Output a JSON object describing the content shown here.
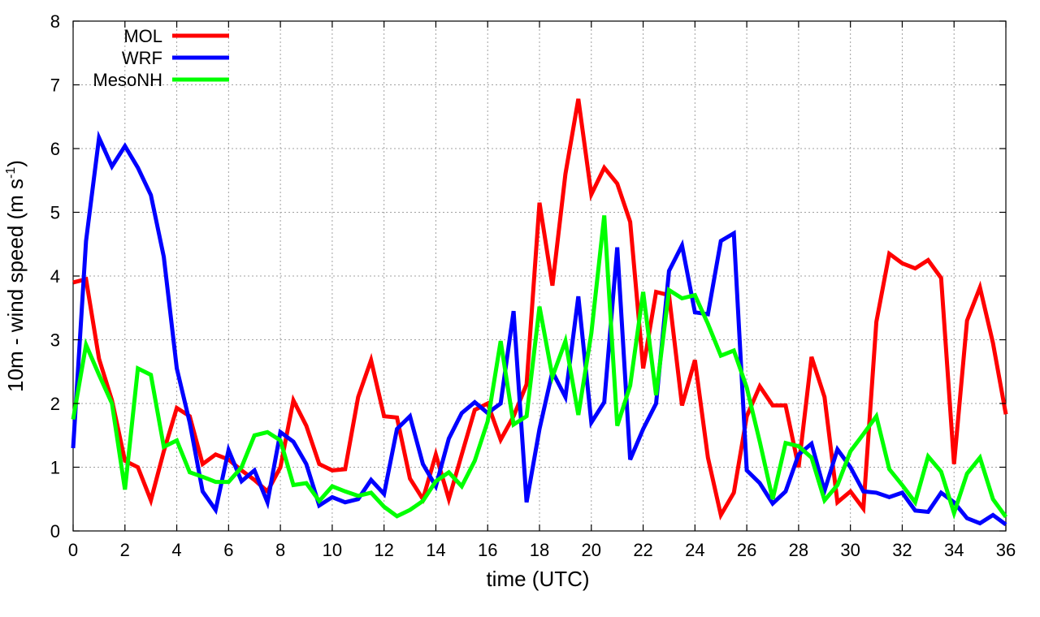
{
  "chart_data": {
    "type": "line",
    "title": "",
    "xlabel": "time (UTC)",
    "ylabel_main": "10m - wind speed  (m s",
    "ylabel_sup": "-1",
    "ylabel_close": ")",
    "xlim": [
      0,
      36
    ],
    "ylim": [
      0,
      8
    ],
    "xticks": [
      0,
      2,
      4,
      6,
      8,
      10,
      12,
      14,
      16,
      18,
      20,
      22,
      24,
      26,
      28,
      30,
      32,
      34,
      36
    ],
    "yticks": [
      0,
      1,
      2,
      3,
      4,
      5,
      6,
      7,
      8
    ],
    "grid": true,
    "legend_position": "top-left",
    "x": [
      0,
      0.5,
      1,
      1.5,
      2,
      2.5,
      3,
      3.5,
      4,
      4.5,
      5,
      5.5,
      6,
      6.5,
      7,
      7.5,
      8,
      8.5,
      9,
      9.5,
      10,
      10.5,
      11,
      11.5,
      12,
      12.5,
      13,
      13.5,
      14,
      14.5,
      15,
      15.5,
      16,
      16.5,
      17,
      17.5,
      18,
      18.5,
      19,
      19.5,
      20,
      20.5,
      21,
      21.5,
      22,
      22.5,
      23,
      23.5,
      24,
      24.5,
      25,
      25.5,
      26,
      26.5,
      27,
      27.5,
      28,
      28.5,
      29,
      29.5,
      30,
      30.5,
      31,
      31.5,
      32,
      32.5,
      33,
      33.5,
      34,
      34.5,
      35,
      35.5,
      36
    ],
    "series": [
      {
        "name": "MOL",
        "color": "#ff0000",
        "values": [
          3.9,
          3.95,
          2.7,
          2.05,
          1.1,
          1.0,
          0.48,
          1.25,
          1.93,
          1.8,
          1.05,
          1.2,
          1.12,
          0.95,
          0.8,
          0.62,
          1.0,
          2.05,
          1.65,
          1.05,
          0.95,
          0.97,
          2.1,
          2.68,
          1.8,
          1.78,
          0.82,
          0.5,
          1.2,
          0.5,
          1.2,
          1.9,
          2.0,
          1.43,
          1.8,
          2.3,
          5.15,
          3.85,
          5.6,
          6.78,
          5.28,
          5.7,
          5.45,
          4.85,
          2.55,
          3.75,
          3.7,
          1.97,
          2.68,
          1.15,
          0.25,
          0.6,
          1.8,
          2.27,
          1.97,
          1.97,
          1.0,
          2.73,
          2.1,
          0.45,
          0.62,
          0.35,
          3.28,
          4.35,
          4.2,
          4.12,
          4.25,
          3.97,
          1.05,
          3.3,
          3.82,
          2.95,
          1.83
        ]
      },
      {
        "name": "WRF",
        "color": "#0000ff",
        "values": [
          1.3,
          4.55,
          6.17,
          5.72,
          6.04,
          5.7,
          5.27,
          4.3,
          2.55,
          1.7,
          0.62,
          0.33,
          1.27,
          0.78,
          0.95,
          0.45,
          1.55,
          1.4,
          1.05,
          0.4,
          0.53,
          0.45,
          0.5,
          0.8,
          0.58,
          1.6,
          1.8,
          1.05,
          0.7,
          1.45,
          1.85,
          2.02,
          1.85,
          2.0,
          3.45,
          0.45,
          1.6,
          2.5,
          2.1,
          3.68,
          1.7,
          2.02,
          4.45,
          1.12,
          1.6,
          2.0,
          4.08,
          4.48,
          3.43,
          3.4,
          4.55,
          4.67,
          0.95,
          0.75,
          0.43,
          0.62,
          1.2,
          1.37,
          0.63,
          1.28,
          1.0,
          0.62,
          0.6,
          0.53,
          0.6,
          0.32,
          0.3,
          0.6,
          0.45,
          0.2,
          0.12,
          0.25,
          0.1
        ]
      },
      {
        "name": "MesoNH",
        "color": "#00ff00",
        "values": [
          1.75,
          2.92,
          2.45,
          2.0,
          0.65,
          2.55,
          2.45,
          1.32,
          1.42,
          0.92,
          0.85,
          0.77,
          0.77,
          1.0,
          1.5,
          1.55,
          1.42,
          0.72,
          0.75,
          0.47,
          0.7,
          0.62,
          0.55,
          0.6,
          0.38,
          0.23,
          0.33,
          0.47,
          0.78,
          0.92,
          0.7,
          1.1,
          1.72,
          2.98,
          1.67,
          1.8,
          3.52,
          2.42,
          2.98,
          1.82,
          3.1,
          4.95,
          1.65,
          2.28,
          3.75,
          2.13,
          3.78,
          3.65,
          3.7,
          3.25,
          2.75,
          2.83,
          2.25,
          1.4,
          0.5,
          1.38,
          1.33,
          1.15,
          0.48,
          0.72,
          1.25,
          1.52,
          1.8,
          0.97,
          0.72,
          0.45,
          1.17,
          0.93,
          0.28,
          0.9,
          1.15,
          0.5,
          0.22
        ]
      }
    ]
  }
}
